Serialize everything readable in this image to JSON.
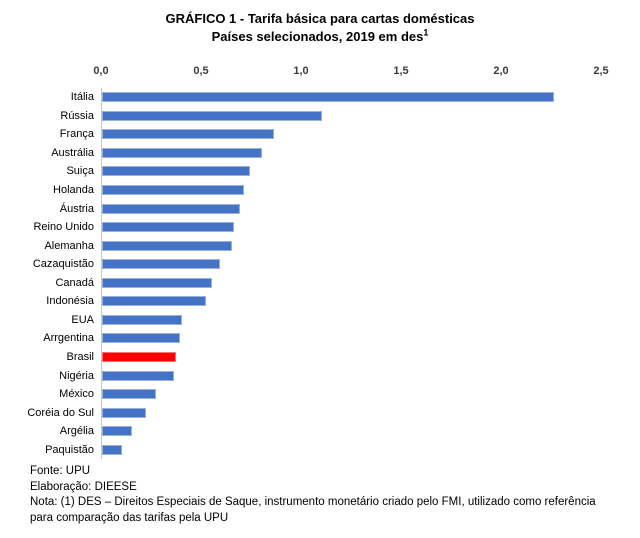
{
  "title": {
    "line1": "GRÁFICO 1  - Tarifa básica para cartas domésticas",
    "line2_prefix": "Países selecionados, 2019 em des",
    "line2_superscript": "1"
  },
  "chart_data": {
    "type": "bar",
    "orientation": "horizontal",
    "title": "GRÁFICO 1 - Tarifa básica para cartas domésticas",
    "subtitle": "Países selecionados, 2019 em des(1)",
    "unit": "DES",
    "categories": [
      "Itália",
      "Rússia",
      "França",
      "Austrália",
      "Suiça",
      "Holanda",
      "Áustria",
      "Reino Unido",
      "Alemanha",
      "Cazaquistão",
      "Canadá",
      "Indonésia",
      "EUA",
      "Arrgentina",
      "Brasil",
      "Nigéria",
      "México",
      "Coréia do Sul",
      "Argélia",
      "Paquistão"
    ],
    "values": [
      2.26,
      1.1,
      0.86,
      0.8,
      0.74,
      0.71,
      0.69,
      0.66,
      0.65,
      0.59,
      0.55,
      0.52,
      0.4,
      0.39,
      0.37,
      0.36,
      0.27,
      0.22,
      0.15,
      0.1
    ],
    "x_ticks": [
      "0,0",
      "0,5",
      "1,0",
      "1,5",
      "2,0",
      "2,5"
    ],
    "x_tick_values": [
      0,
      0.5,
      1.0,
      1.5,
      2.0,
      2.5
    ],
    "xlim": [
      0,
      2.5
    ],
    "axis_position": "top",
    "gridlines": false,
    "legend": "none",
    "colors": {
      "bar_default": "#4472c4",
      "bar_highlight": "#ff0000",
      "highlight_category": "Brasil",
      "axis_line": "#c6c6c6",
      "tick_text": "#3b3b3b"
    }
  },
  "footer": {
    "source": "Fonte: UPU",
    "elaboration": "Elaboração: DIEESE",
    "note": "Nota: (1) DES – Direitos Especiais de Saque, instrumento monetário criado pelo FMI, utilizado como referência para comparação das tarifas pela UPU"
  }
}
